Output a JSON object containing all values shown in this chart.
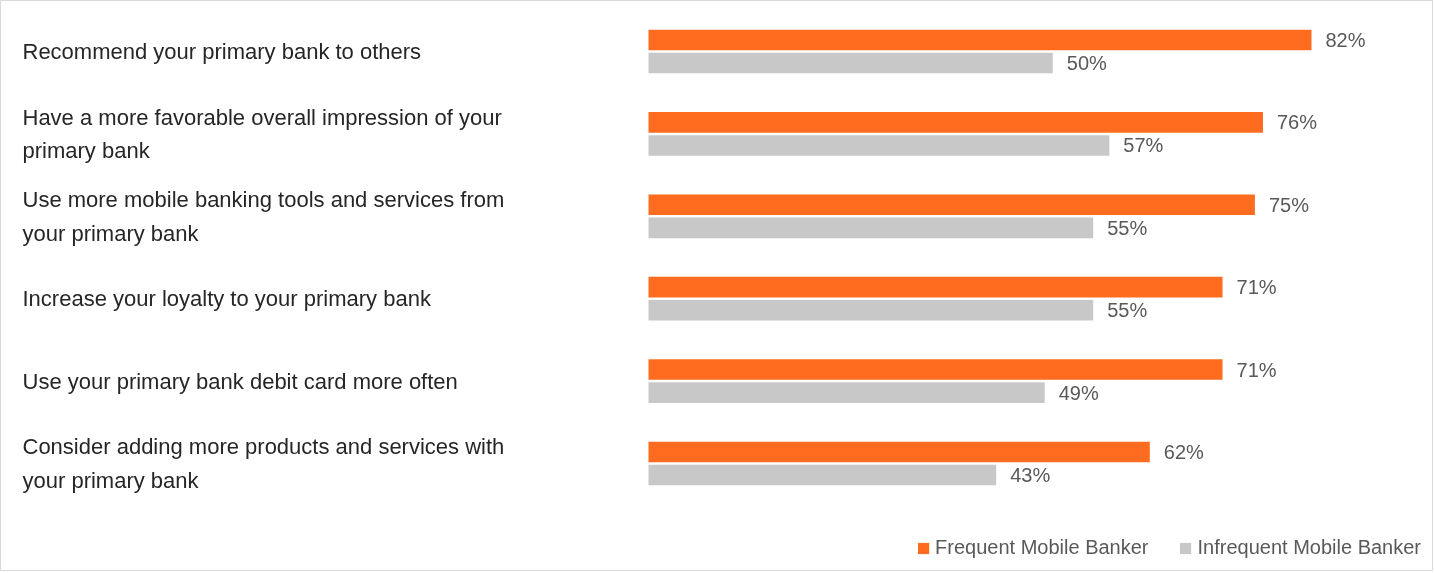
{
  "chart_data": {
    "type": "bar",
    "orientation": "horizontal",
    "legend": "bottom right",
    "grid": false,
    "tick_labels": false,
    "categories": [
      "Recommend your primary bank to others",
      "Have a more favorable overall impression of your primary bank",
      "Use more mobile banking tools and services from your primary bank",
      "Increase your loyalty to your primary bank",
      "Use your primary bank debit card more often",
      "Consider adding more products and services with your primary bank"
    ],
    "series": [
      {
        "name": "Frequent Mobile Banker",
        "color": "#ff6c1f",
        "values": [
          82,
          76,
          75,
          71,
          71,
          62
        ],
        "value_labels": [
          "82%",
          "76%",
          "75%",
          "71%",
          "71%",
          "62%"
        ]
      },
      {
        "name": "Infrequent Mobile Banker",
        "color": "#c8c8c8",
        "values": [
          50,
          57,
          55,
          55,
          49,
          43
        ],
        "value_labels": [
          "50%",
          "57%",
          "55%",
          "55%",
          "49%",
          "43%"
        ]
      }
    ]
  }
}
